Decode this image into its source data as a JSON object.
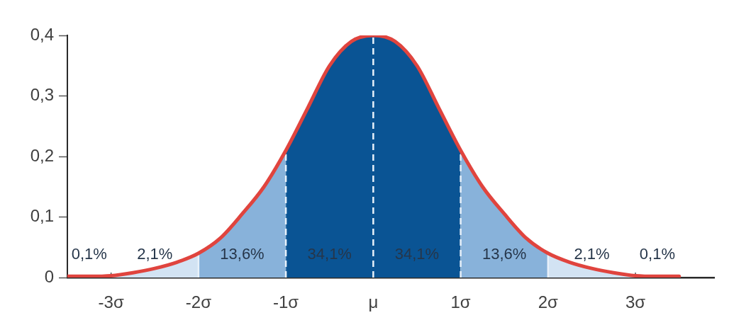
{
  "chart_data": {
    "type": "area",
    "xlim": [
      -3.5,
      3.9
    ],
    "xticks": [
      {
        "value": -3,
        "label": "-3σ"
      },
      {
        "value": -2,
        "label": "-2σ"
      },
      {
        "value": -1,
        "label": "-1σ"
      },
      {
        "value": 0,
        "label": "μ"
      },
      {
        "value": 1,
        "label": "1σ"
      },
      {
        "value": 2,
        "label": "2σ"
      },
      {
        "value": 3,
        "label": "3σ"
      }
    ],
    "ylim": [
      0,
      0.4
    ],
    "yticks": [
      0,
      {
        "value": 0.1,
        "label": "0,1"
      },
      {
        "value": 0.2,
        "label": "0,2"
      },
      {
        "value": 0.3,
        "label": "0,3"
      },
      {
        "value": 0.4,
        "label": "0,4"
      }
    ],
    "grid": false,
    "legend": false,
    "marker": "none",
    "series": [
      {
        "color": "#d2e3f3",
        "x": [
          -3,
          -2.75,
          -2.5,
          -2.25,
          -2
        ],
        "values": [
          0.003,
          0.008,
          0.015,
          0.025,
          0.04
        ]
      },
      {
        "color": "#88b2da",
        "x": [
          -2,
          -1.75,
          -1.5,
          -1.25,
          -1
        ],
        "values": [
          0.04,
          0.065,
          0.105,
          0.15,
          0.21
        ]
      },
      {
        "color": "#0a5494",
        "x": [
          -1,
          -0.75,
          -0.5,
          -0.25,
          0,
          0.25,
          0.5,
          0.75,
          1
        ],
        "values": [
          0.21,
          0.28,
          0.35,
          0.39,
          0.4,
          0.39,
          0.35,
          0.28,
          0.21
        ]
      },
      {
        "color": "#88b2da",
        "x": [
          1,
          1.25,
          1.5,
          1.75,
          2
        ],
        "values": [
          0.21,
          0.15,
          0.105,
          0.065,
          0.04
        ]
      },
      {
        "color": "#d2e3f3",
        "x": [
          2,
          2.25,
          2.5,
          2.75,
          3
        ],
        "values": [
          0.04,
          0.025,
          0.015,
          0.008,
          0.003
        ]
      },
      {
        "type": "line",
        "color": "#e0443e",
        "x": [
          -3.5,
          -3.25,
          -3,
          -2.75,
          -2.5,
          -2.25,
          -2,
          -1.75,
          -1.5,
          -1.25,
          -1,
          -0.75,
          -0.5,
          -0.25,
          0,
          0.25,
          0.5,
          0.75,
          1,
          1.25,
          1.5,
          1.75,
          2,
          2.25,
          2.5,
          2.75,
          3,
          3.25,
          3.5
        ],
        "values": [
          0.002,
          0.002,
          0.003,
          0.008,
          0.015,
          0.025,
          0.04,
          0.065,
          0.105,
          0.15,
          0.21,
          0.28,
          0.35,
          0.39,
          0.4,
          0.39,
          0.35,
          0.28,
          0.21,
          0.15,
          0.105,
          0.065,
          0.04,
          0.025,
          0.015,
          0.008,
          0.003,
          0.002,
          0.002
        ]
      }
    ],
    "ref_lines": [
      {
        "axis": "x",
        "value": -2,
        "color": "#e8f1fa",
        "line_style": "solid"
      },
      {
        "axis": "x",
        "value": -1,
        "color": "#e8f1fa",
        "line_style": "dashed"
      },
      {
        "axis": "x",
        "value": 0,
        "color": "#e8f1fa",
        "line_style": "dashed"
      },
      {
        "axis": "x",
        "value": 1,
        "color": "#e8f1fa",
        "line_style": "dashed"
      },
      {
        "axis": "x",
        "value": 2,
        "color": "#e8f1fa",
        "line_style": "solid"
      }
    ],
    "annotations": [
      "0,1%",
      "2,1%",
      "13,6%",
      "34,1%",
      "34,1%",
      "13,6%",
      "2,1%",
      "0,1%"
    ]
  }
}
